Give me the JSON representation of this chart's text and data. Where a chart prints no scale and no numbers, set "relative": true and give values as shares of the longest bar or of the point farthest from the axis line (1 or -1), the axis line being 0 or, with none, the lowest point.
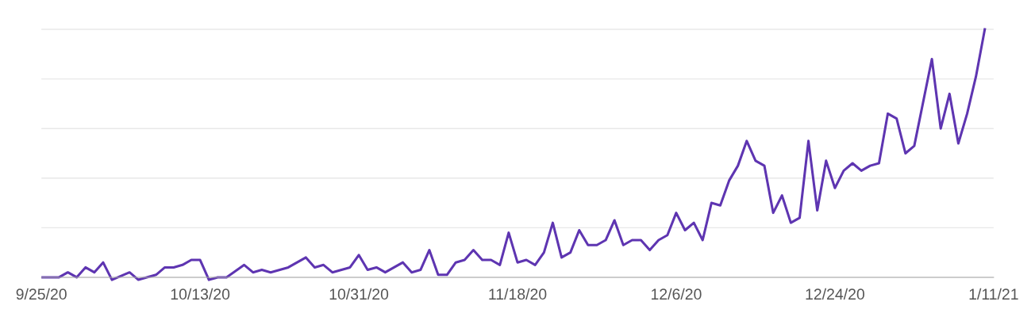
{
  "chart_data": {
    "type": "line",
    "relative": true,
    "grid": "y",
    "marker": "none",
    "line_style": "solid",
    "xlim": [
      "2020-09-25",
      "2021-01-11"
    ],
    "xticks": [
      {
        "value": "2020-09-25",
        "label": "9/25/20"
      },
      {
        "value": "2020-10-13",
        "label": "10/13/20"
      },
      {
        "value": "2020-10-31",
        "label": "10/31/20"
      },
      {
        "value": "2020-11-18",
        "label": "11/18/20"
      },
      {
        "value": "2020-12-06",
        "label": "12/6/20"
      },
      {
        "value": "2020-12-24",
        "label": "12/24/20"
      },
      {
        "value": "2021-01-11",
        "label": "1/11/21"
      }
    ],
    "x": [
      "2020-09-25",
      "2020-09-27",
      "2020-09-28",
      "2020-09-29",
      "2020-09-30",
      "2020-10-01",
      "2020-10-02",
      "2020-10-03",
      "2020-10-05",
      "2020-10-06",
      "2020-10-08",
      "2020-10-09",
      "2020-10-10",
      "2020-10-11",
      "2020-10-12",
      "2020-10-13",
      "2020-10-14",
      "2020-10-15",
      "2020-10-16",
      "2020-10-18",
      "2020-10-19",
      "2020-10-20",
      "2020-10-21",
      "2020-10-23",
      "2020-10-25",
      "2020-10-26",
      "2020-10-27",
      "2020-10-28",
      "2020-10-30",
      "2020-10-31",
      "2020-11-01",
      "2020-11-02",
      "2020-11-03",
      "2020-11-04",
      "2020-11-05",
      "2020-11-06",
      "2020-11-07",
      "2020-11-08",
      "2020-11-09",
      "2020-11-10",
      "2020-11-11",
      "2020-11-12",
      "2020-11-13",
      "2020-11-14",
      "2020-11-15",
      "2020-11-16",
      "2020-11-17",
      "2020-11-18",
      "2020-11-19",
      "2020-11-20",
      "2020-11-21",
      "2020-11-22",
      "2020-11-23",
      "2020-11-24",
      "2020-11-25",
      "2020-11-26",
      "2020-11-27",
      "2020-11-28",
      "2020-11-29",
      "2020-11-30",
      "2020-12-01",
      "2020-12-02",
      "2020-12-03",
      "2020-12-04",
      "2020-12-05",
      "2020-12-06",
      "2020-12-07",
      "2020-12-08",
      "2020-12-09",
      "2020-12-10",
      "2020-12-11",
      "2020-12-12",
      "2020-12-13",
      "2020-12-14",
      "2020-12-15",
      "2020-12-16",
      "2020-12-17",
      "2020-12-18",
      "2020-12-19",
      "2020-12-20",
      "2020-12-21",
      "2020-12-22",
      "2020-12-23",
      "2020-12-24",
      "2020-12-25",
      "2020-12-26",
      "2020-12-27",
      "2020-12-28",
      "2020-12-29",
      "2020-12-30",
      "2020-12-31",
      "2021-01-01",
      "2021-01-02",
      "2021-01-04",
      "2021-01-05",
      "2021-01-06",
      "2021-01-07",
      "2021-01-08",
      "2021-01-09",
      "2021-01-10"
    ],
    "series": [
      {
        "color": "#5e35b1",
        "values": [
          0.0,
          0.0,
          0.02,
          0.0,
          0.04,
          0.02,
          0.06,
          -0.01,
          0.02,
          -0.01,
          0.01,
          0.04,
          0.04,
          0.05,
          0.07,
          0.07,
          -0.01,
          0.0,
          0.0,
          0.05,
          0.02,
          0.03,
          0.02,
          0.04,
          0.08,
          0.04,
          0.05,
          0.02,
          0.04,
          0.09,
          0.03,
          0.04,
          0.02,
          0.04,
          0.06,
          0.02,
          0.03,
          0.11,
          0.01,
          0.01,
          0.06,
          0.07,
          0.11,
          0.07,
          0.07,
          0.05,
          0.18,
          0.06,
          0.07,
          0.05,
          0.1,
          0.22,
          0.08,
          0.1,
          0.19,
          0.13,
          0.13,
          0.15,
          0.23,
          0.13,
          0.15,
          0.15,
          0.11,
          0.15,
          0.17,
          0.26,
          0.19,
          0.22,
          0.15,
          0.3,
          0.29,
          0.39,
          0.45,
          0.55,
          0.47,
          0.45,
          0.26,
          0.33,
          0.22,
          0.24,
          0.55,
          0.27,
          0.47,
          0.36,
          0.43,
          0.46,
          0.43,
          0.45,
          0.46,
          0.66,
          0.64,
          0.5,
          0.53,
          0.88,
          0.6,
          0.74,
          0.54,
          0.66,
          0.81,
          1.0
        ]
      }
    ]
  }
}
